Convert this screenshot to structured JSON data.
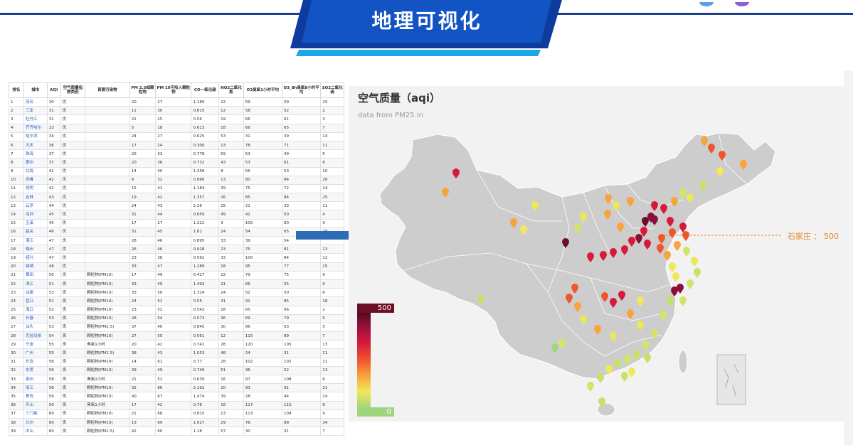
{
  "header": {
    "title": "地理可视化"
  },
  "table": {
    "columns": [
      "排名",
      "城市",
      "AQI",
      "空气质量指数类别",
      "首要污染物",
      "PM 2.5细颗粒物",
      "PM 10可吸入颗粒物",
      "CO一氧化碳",
      "NO2二氧化氮",
      "O3臭氧1小时平均",
      "O3_8h臭氧8小时平均",
      "SO2二氧化硫"
    ],
    "rows": [
      [
        "1",
        "茂名",
        "30",
        "优",
        "",
        "20",
        "27",
        "1.189",
        "22",
        "59",
        "59",
        "15"
      ],
      [
        "2",
        "三亚",
        "31",
        "优",
        "",
        "11",
        "30",
        "0.615",
        "12",
        "58",
        "52",
        "2"
      ],
      [
        "3",
        "牡丹江",
        "31",
        "优",
        "",
        "21",
        "25",
        "0.56",
        "19",
        "66",
        "61",
        "3"
      ],
      [
        "4",
        "齐齐哈尔",
        "33",
        "优",
        "",
        "5",
        "18",
        "0.613",
        "18",
        "66",
        "65",
        "7"
      ],
      [
        "5",
        "哈尔滨",
        "34",
        "优",
        "",
        "24",
        "27",
        "0.625",
        "53",
        "31",
        "39",
        "14"
      ],
      [
        "6",
        "大庆",
        "36",
        "优",
        "",
        "17",
        "24",
        "0.300",
        "13",
        "78",
        "71",
        "11"
      ],
      [
        "7",
        "珠海",
        "37",
        "优",
        "",
        "26",
        "33",
        "0.778",
        "59",
        "53",
        "49",
        "5"
      ],
      [
        "8",
        "惠州",
        "37",
        "优",
        "",
        "20",
        "36",
        "0.732",
        "43",
        "53",
        "61",
        "6"
      ],
      [
        "9",
        "北海",
        "41",
        "优",
        "",
        "14",
        "40",
        "1.358",
        "8",
        "56",
        "53",
        "10"
      ],
      [
        "10",
        "赤峰",
        "42",
        "优",
        "",
        "9",
        "32",
        "0.866",
        "13",
        "80",
        "84",
        "26"
      ],
      [
        "11",
        "昆明",
        "42",
        "优",
        "",
        "15",
        "41",
        "1.184",
        "39",
        "75",
        "72",
        "14"
      ],
      [
        "12",
        "吉林",
        "43",
        "优",
        "",
        "19",
        "42",
        "1.357",
        "26",
        "85",
        "84",
        "25"
      ],
      [
        "13",
        "云浮",
        "44",
        "优",
        "",
        "24",
        "43",
        "2.26",
        "25",
        "21",
        "33",
        "11"
      ],
      [
        "14",
        "深圳",
        "45",
        "优",
        "",
        "31",
        "44",
        "0.859",
        "49",
        "41",
        "50",
        "4"
      ],
      [
        "15",
        "玉溪",
        "45",
        "优",
        "",
        "17",
        "27",
        "1.222",
        "9",
        "100",
        "80",
        "9"
      ],
      [
        "16",
        "韶关",
        "46",
        "优",
        "",
        "31",
        "45",
        "1.81",
        "24",
        "54",
        "65",
        "19"
      ],
      [
        "17",
        "湛江",
        "47",
        "优",
        "",
        "28",
        "46",
        "0.895",
        "33",
        "39",
        "54",
        ""
      ],
      [
        "18",
        "梅州",
        "47",
        "优",
        "",
        "26",
        "46",
        "0.918",
        "23",
        "75",
        "81",
        "13"
      ],
      [
        "19",
        "绍兴",
        "47",
        "优",
        "",
        "23",
        "38",
        "0.592",
        "33",
        "100",
        "84",
        "12"
      ],
      [
        "20",
        "曲靖",
        "48",
        "优",
        "",
        "33",
        "47",
        "1.289",
        "18",
        "95",
        "77",
        "15"
      ],
      [
        "21",
        "莆田",
        "50",
        "优",
        "颗粒物(PM10)",
        "17",
        "49",
        "0.427",
        "22",
        "79",
        "75",
        "9"
      ],
      [
        "22",
        "漳江",
        "51",
        "良",
        "颗粒物(PM10)",
        "33",
        "49",
        "1.493",
        "21",
        "66",
        "55",
        "9"
      ],
      [
        "23",
        "汕尾",
        "53",
        "良",
        "颗粒物(PM10)",
        "33",
        "50",
        "1.324",
        "24",
        "52",
        "50",
        "6"
      ],
      [
        "24",
        "营口",
        "51",
        "良",
        "颗粒物(PM10)",
        "24",
        "51",
        "0.55",
        "31",
        "91",
        "85",
        "18"
      ],
      [
        "25",
        "海口",
        "52",
        "良",
        "颗粒物(PM10)",
        "23",
        "52",
        "0.542",
        "18",
        "65",
        "66",
        "2"
      ],
      [
        "26",
        "长春",
        "53",
        "良",
        "颗粒物(PM10)",
        "28",
        "54",
        "0.573",
        "36",
        "69",
        "79",
        "5"
      ],
      [
        "27",
        "汕头",
        "53",
        "良",
        "颗粒物(PM2.5)",
        "37",
        "40",
        "0.845",
        "30",
        "86",
        "63",
        "5"
      ],
      [
        "28",
        "克拉玛依",
        "54",
        "良",
        "颗粒物(PM10)",
        "27",
        "55",
        "0.561",
        "12",
        "115",
        "89",
        "7"
      ],
      [
        "29",
        "宁波",
        "55",
        "良",
        "臭氧1小时",
        "20",
        "42",
        "0.741",
        "28",
        "120",
        "105",
        "13"
      ],
      [
        "30",
        "广州",
        "55",
        "良",
        "颗粒物(PM2.5)",
        "38",
        "43",
        "1.053",
        "48",
        "24",
        "31",
        "11"
      ],
      [
        "31",
        "长治",
        "56",
        "良",
        "颗粒物(PM10)",
        "14",
        "61",
        "0.77",
        "28",
        "102",
        "102",
        "21"
      ],
      [
        "32",
        "东莞",
        "56",
        "良",
        "颗粒物(PM10)",
        "39",
        "49",
        "0.746",
        "51",
        "36",
        "52",
        "13"
      ],
      [
        "33",
        "泉州",
        "58",
        "良",
        "臭氧1小时",
        "21",
        "52",
        "0.639",
        "16",
        "97",
        "108",
        "6"
      ],
      [
        "34",
        "丽江",
        "58",
        "良",
        "颗粒物(PM10)",
        "32",
        "66",
        "2.192",
        "20",
        "93",
        "91",
        "21"
      ],
      [
        "35",
        "青岛",
        "59",
        "良",
        "颗粒物(PM10)",
        "40",
        "67",
        "1.474",
        "39",
        "28",
        "44",
        "24"
      ],
      [
        "36",
        "舟山",
        "59",
        "良",
        "臭氧1小时",
        "17",
        "42",
        "0.76",
        "16",
        "117",
        "110",
        "6"
      ],
      [
        "37",
        "三门峡",
        "60",
        "良",
        "颗粒物(PM10)",
        "21",
        "68",
        "0.815",
        "13",
        "113",
        "104",
        "9"
      ],
      [
        "38",
        "兰州",
        "60",
        "良",
        "颗粒物(PM10)",
        "13",
        "69",
        "1.027",
        "29",
        "78",
        "88",
        "34"
      ],
      [
        "39",
        "中山",
        "60",
        "良",
        "颗粒物(PM2.5)",
        "42",
        "60",
        "1.18",
        "57",
        "30",
        "31",
        "7"
      ]
    ]
  },
  "map": {
    "title": "空气质量（aqi）",
    "subtitle": "data from PM25.in",
    "legend_max": "500",
    "legend_min": "0",
    "callout": "石家庄 ： 500",
    "colors": {
      "max": "#4f0b1a",
      "mid": "#f0562d",
      "min": "#9fd57d"
    }
  }
}
